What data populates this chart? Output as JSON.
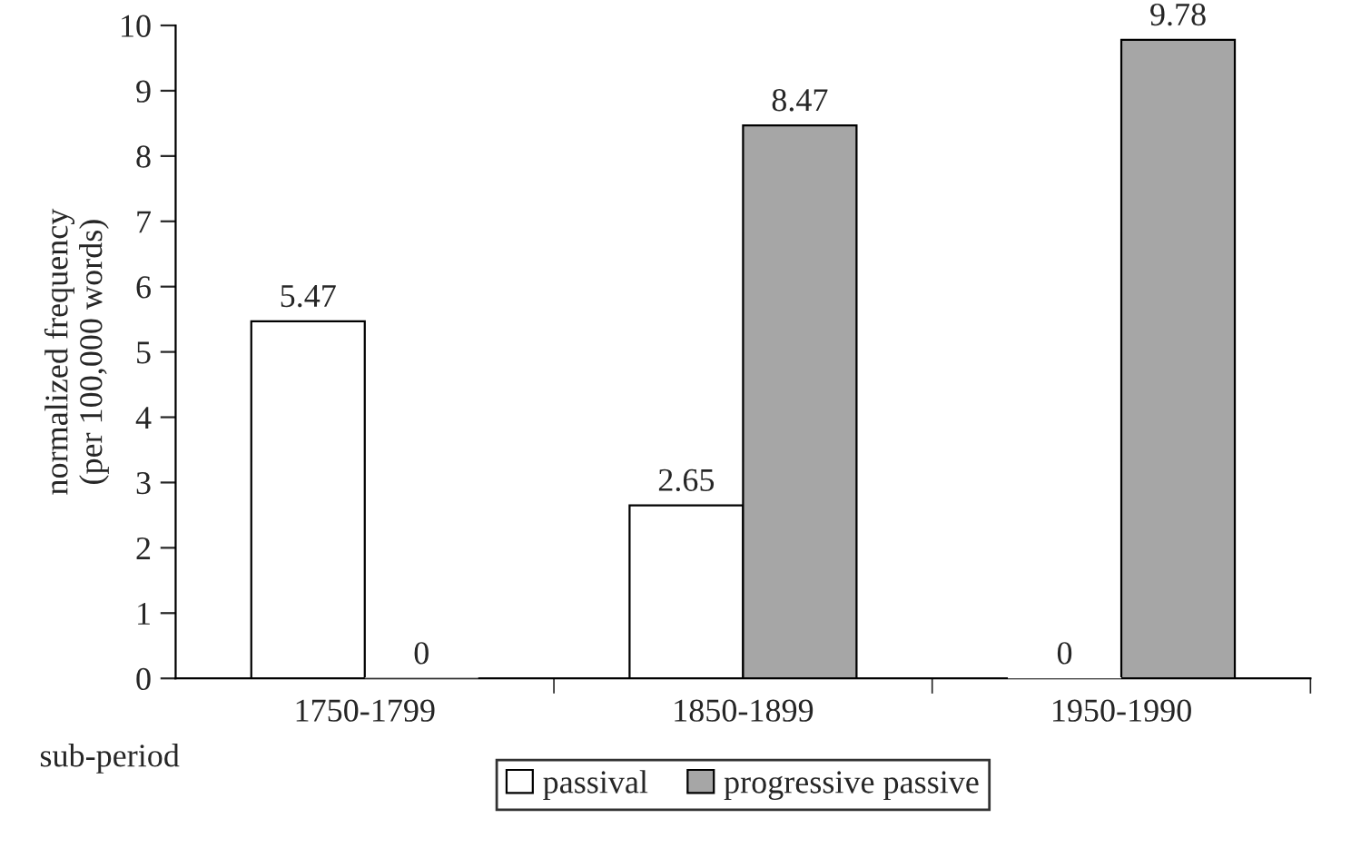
{
  "chart_data": {
    "type": "bar",
    "categories": [
      "1750-1799",
      "1850-1899",
      "1950-1990"
    ],
    "series": [
      {
        "name": "passival",
        "color": "#ffffff",
        "values": [
          5.47,
          2.65,
          0
        ]
      },
      {
        "name": "progressive passive",
        "color": "#a6a6a6",
        "values": [
          0,
          8.47,
          9.78
        ]
      }
    ],
    "xlabel": "sub-period",
    "ylabel": "normalized frequency\n(per 100,000 words)",
    "ylim": [
      0,
      10
    ],
    "yticks": [
      0,
      1,
      2,
      3,
      4,
      5,
      6,
      7,
      8,
      9,
      10
    ],
    "data_labels": true,
    "grid": false,
    "legend": "bottom"
  }
}
